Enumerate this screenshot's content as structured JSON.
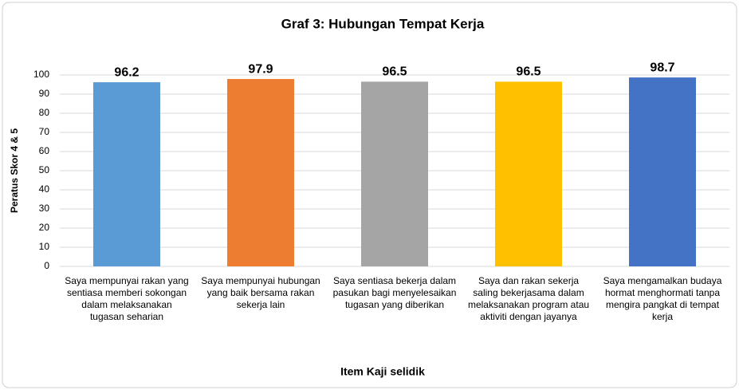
{
  "chart_data": {
    "type": "bar",
    "title": "Graf 3: Hubungan Tempat Kerja",
    "x_label": "Item Kaji selidik",
    "y_label": "Peratus Skor 4 & 5",
    "categories": [
      "Saya mempunyai rakan yang sentiasa memberi sokongan dalam melaksanakan tugasan seharian",
      "Saya mempunyai hubungan yang baik bersama rakan sekerja lain",
      "Saya sentiasa bekerja dalam pasukan bagi menyelesaikan tugasan yang diberikan",
      "Saya dan rakan sekerja saling bekerjasama dalam melaksanakan program atau aktiviti dengan jayanya",
      "Saya mengamalkan budaya hormat menghormati tanpa mengira pangkat di tempat kerja"
    ],
    "values": [
      96.2,
      97.9,
      96.5,
      96.5,
      98.7
    ],
    "colors": [
      "#5b9bd5",
      "#ed7d31",
      "#a5a5a5",
      "#ffc000",
      "#4472c4"
    ],
    "ylim": [
      0,
      100
    ],
    "yticks": [
      0,
      10,
      20,
      30,
      40,
      50,
      60,
      70,
      80,
      90,
      100
    ],
    "grid": true
  }
}
